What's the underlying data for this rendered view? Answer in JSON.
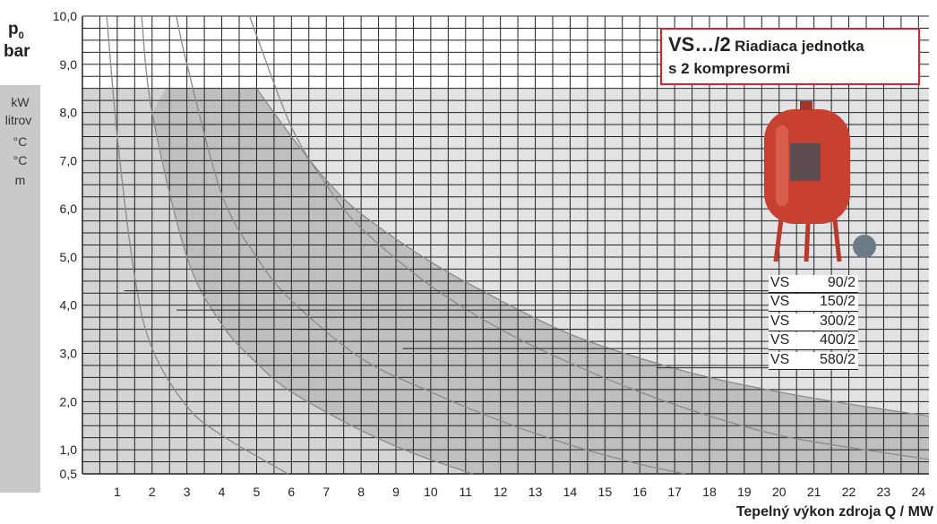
{
  "chart_data": {
    "type": "area",
    "ylabel_top": "p",
    "ylabel_sub": "0",
    "ylabel_unit": "bar",
    "side_units": [
      "kW",
      "litrov",
      "°C",
      "°C",
      "m"
    ],
    "xlabel": "Tepelný výkon zdroja Q / MW",
    "xlim": [
      0,
      24.3
    ],
    "ylim": [
      0.5,
      10.0
    ],
    "x_ticks": [
      1,
      2,
      3,
      4,
      5,
      6,
      7,
      8,
      9,
      10,
      11,
      12,
      13,
      14,
      15,
      16,
      17,
      18,
      19,
      20,
      21,
      22,
      23,
      24
    ],
    "y_ticks": [
      {
        "v": 0.5,
        "label": "0,5"
      },
      {
        "v": 1.0,
        "label": "1,0"
      },
      {
        "v": 2.0,
        "label": "2,0"
      },
      {
        "v": 3.0,
        "label": "3,0"
      },
      {
        "v": 4.0,
        "label": "4,0"
      },
      {
        "v": 5.0,
        "label": "5,0"
      },
      {
        "v": 6.0,
        "label": "6,0"
      },
      {
        "v": 7.0,
        "label": "7,0"
      },
      {
        "v": 8.0,
        "label": "8,0"
      },
      {
        "v": 9.0,
        "label": "9,0"
      },
      {
        "v": 10.0,
        "label": "10,0"
      }
    ],
    "grid": true,
    "envelope_max_pressure": 8.5,
    "series": [
      {
        "name": "VS 90/2",
        "points": [
          [
            0.7,
            10
          ],
          [
            1,
            7.5
          ],
          [
            1.5,
            4.6
          ],
          [
            2,
            3.1
          ],
          [
            3,
            1.9
          ],
          [
            4,
            1.3
          ],
          [
            5.9,
            0.5
          ]
        ]
      },
      {
        "name": "VS 150/2",
        "points": [
          [
            1.7,
            10
          ],
          [
            2,
            8
          ],
          [
            3,
            5
          ],
          [
            4,
            3.6
          ],
          [
            5,
            2.8
          ],
          [
            6,
            2.2
          ],
          [
            8,
            1.4
          ],
          [
            9.6,
            0.9
          ],
          [
            11.2,
            0.5
          ]
        ]
      },
      {
        "name": "VS 300/2",
        "points": [
          [
            2.7,
            10
          ],
          [
            3,
            9
          ],
          [
            4,
            6.3
          ],
          [
            5,
            5
          ],
          [
            6,
            4.1
          ],
          [
            8,
            2.9
          ],
          [
            10,
            2.2
          ],
          [
            12,
            1.6
          ],
          [
            14,
            1.1
          ],
          [
            16,
            0.7
          ],
          [
            17.3,
            0.5
          ]
        ]
      },
      {
        "name": "VS 400/2",
        "points": [
          [
            4.8,
            10
          ],
          [
            5,
            9.6
          ],
          [
            6,
            7.7
          ],
          [
            7,
            6.5
          ],
          [
            8,
            5.6
          ],
          [
            10,
            4.4
          ],
          [
            12,
            3.5
          ],
          [
            14,
            2.8
          ],
          [
            16,
            2.2
          ],
          [
            18,
            1.7
          ],
          [
            20,
            1.3
          ],
          [
            22,
            1.05
          ],
          [
            24.3,
            0.8
          ]
        ]
      },
      {
        "name": "VS 580/2",
        "points": [
          [
            5,
            8.5
          ],
          [
            6,
            7.5
          ],
          [
            7,
            6.6
          ],
          [
            8,
            5.9
          ],
          [
            10,
            4.9
          ],
          [
            12,
            4.1
          ],
          [
            14,
            3.4
          ],
          [
            16,
            2.9
          ],
          [
            18,
            2.5
          ],
          [
            20,
            2.2
          ],
          [
            22,
            1.95
          ],
          [
            24.3,
            1.7
          ]
        ]
      }
    ],
    "series_labels": [
      {
        "name": "VS",
        "code": "90/2",
        "p": 4.3,
        "x_start": 1.2
      },
      {
        "name": "VS",
        "code": "150/2",
        "p": 3.9,
        "x_start": 2.7
      },
      {
        "name": "VS",
        "code": "300/2",
        "p": 3.5,
        "x_start": 6.2
      },
      {
        "name": "VS",
        "code": "400/2",
        "p": 3.1,
        "x_start": 9.2
      },
      {
        "name": "VS",
        "code": "580/2",
        "p": 2.7,
        "x_start": 16.5
      }
    ]
  },
  "callout": {
    "title_big": "VS…/2",
    "title_small": "Riadiaca jednotka",
    "line2": "s 2 kompresormi"
  },
  "colors": {
    "grid": "#222222",
    "fill_light": "#e3e3e5",
    "fill_dark": "#bfbfc2",
    "curve": "#8a8a8d",
    "callout_border": "#d7252f",
    "tank": "#c84030",
    "side_panel": "#c9c9cb"
  }
}
